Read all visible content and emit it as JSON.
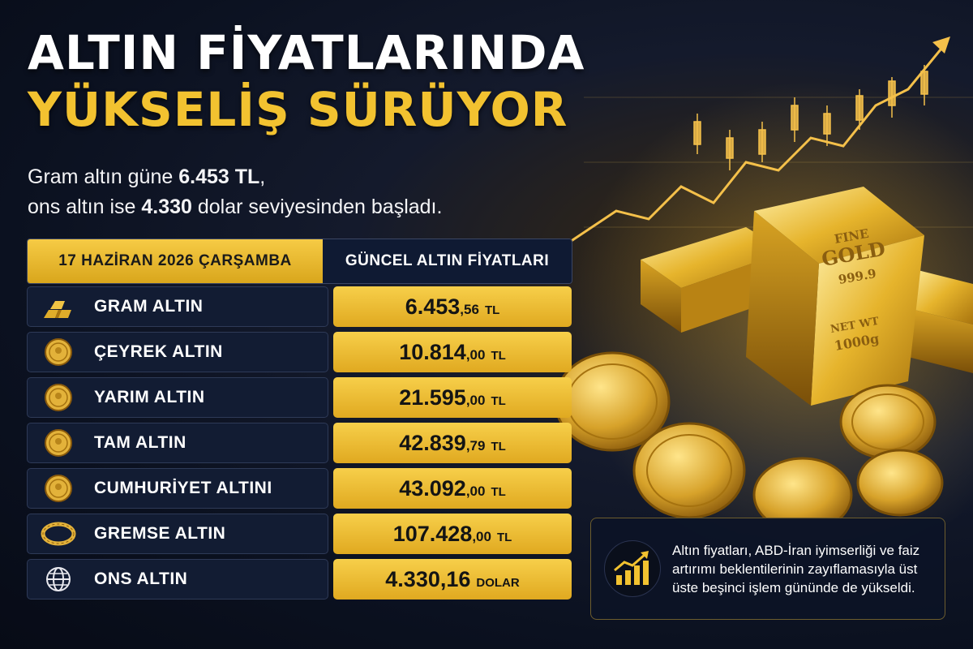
{
  "title": {
    "line1": "ALTIN FİYATLARINDA",
    "line2": "YÜKSELİŞ SÜRÜYOR"
  },
  "subtitle": {
    "line1_pre": "Gram altın güne ",
    "line1_bold": "6.453 TL",
    "line1_post": ",",
    "line2_pre": "ons altın ise ",
    "line2_bold": "4.330",
    "line2_post": " dolar seviyesinden başladı."
  },
  "table": {
    "date_header": "17 HAZİRAN 2026 ÇARŞAMBA",
    "price_header": "GÜNCEL ALTIN FİYATLARI",
    "rows": [
      {
        "icon": "gold-bars-icon",
        "label": "GRAM ALTIN",
        "price": "6.453",
        "decimal": ",56",
        "unit": "TL"
      },
      {
        "icon": "quarter-coin-icon",
        "label": "ÇEYREK ALTIN",
        "price": "10.814",
        "decimal": ",00",
        "unit": "TL"
      },
      {
        "icon": "half-coin-icon",
        "label": "YARIM ALTIN",
        "price": "21.595",
        "decimal": ",00",
        "unit": "TL"
      },
      {
        "icon": "full-coin-icon",
        "label": "TAM ALTIN",
        "price": "42.839",
        "decimal": ",79",
        "unit": "TL"
      },
      {
        "icon": "republic-coin-icon",
        "label": "CUMHURİYET ALTINI",
        "price": "43.092",
        "decimal": ",00",
        "unit": "TL"
      },
      {
        "icon": "bracelet-icon",
        "label": "GREMSE ALTIN",
        "price": "107.428",
        "decimal": ",00",
        "unit": "TL"
      },
      {
        "icon": "globe-icon",
        "label": "ONS ALTIN",
        "price": "4.330,16",
        "decimal": "",
        "unit": "DOLAR"
      }
    ]
  },
  "bar": {
    "line1": "FINE",
    "line2": "GOLD",
    "line3": "999.9",
    "line4": "NET WT",
    "line5": "1000g"
  },
  "note": {
    "icon": "rising-chart-icon",
    "text": "Altın fiyatları, ABD-İran iyimserliği ve faiz artırımı beklentilerinin zayıflamasıyla üst üste beşinci işlem gününde de yükseldi."
  },
  "colors": {
    "gold": "#f2c230",
    "navy": "#0f1a33",
    "background": "#0b1120"
  }
}
